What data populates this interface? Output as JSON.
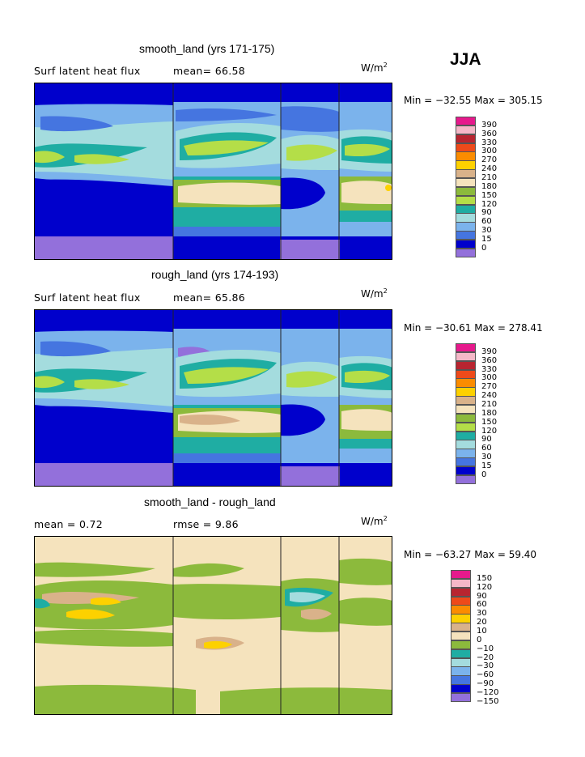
{
  "season": "JJA",
  "units": {
    "base": "W/m",
    "exp": "2"
  },
  "panels": [
    {
      "title": "smooth_land (yrs 171-175)",
      "left_label": "Surf latent heat flux",
      "stat1": "mean=   66.58",
      "stat2": "",
      "minmax": "Min = −32.55  Max =  305.15"
    },
    {
      "title": "rough_land (yrs 174-193)",
      "left_label": "Surf latent heat flux",
      "stat1": "mean=   65.86",
      "stat2": "",
      "minmax": "Min = −30.61  Max =  278.41"
    },
    {
      "title": "smooth_land - rough_land",
      "left_label": "mean =    0.72",
      "stat1": "rmse =    9.86",
      "stat2": "",
      "minmax": "Min = −63.27  Max =   59.40"
    }
  ],
  "colors": {
    "c390": "#e6198c",
    "c360": "#f5b8c8",
    "c330": "#b82530",
    "c300": "#ee4a1a",
    "c270": "#fb8c00",
    "c240": "#fdd100",
    "c210": "#d9b28a",
    "c180": "#f5e3bd",
    "c150": "#8cba3c",
    "c120": "#b4de48",
    "c90": "#1fada3",
    "c60": "#a4dcde",
    "c30": "#7bb3ec",
    "c15": "#4575e0",
    "c0": "#0000cc",
    "cneg": "#9370db"
  },
  "chart_data": [
    {
      "type": "heatmap",
      "title": "smooth_land (yrs 171-175)",
      "variable": "Surf latent heat flux",
      "mean": 66.58,
      "min": -32.55,
      "max": 305.15,
      "units": "W/m2",
      "colorbar_levels": [
        390,
        360,
        330,
        300,
        270,
        240,
        210,
        180,
        150,
        120,
        90,
        60,
        30,
        15,
        0
      ]
    },
    {
      "type": "heatmap",
      "title": "rough_land (yrs 174-193)",
      "variable": "Surf latent heat flux",
      "mean": 65.86,
      "min": -30.61,
      "max": 278.41,
      "units": "W/m2",
      "colorbar_levels": [
        390,
        360,
        330,
        300,
        270,
        240,
        210,
        180,
        150,
        120,
        90,
        60,
        30,
        15,
        0
      ]
    },
    {
      "type": "heatmap",
      "title": "smooth_land - rough_land",
      "mean": 0.72,
      "rmse": 9.86,
      "min": -63.27,
      "max": 59.4,
      "units": "W/m2",
      "colorbar_levels": [
        150,
        120,
        90,
        60,
        30,
        20,
        10,
        0,
        -10,
        -20,
        -30,
        -60,
        -90,
        -120,
        -150
      ]
    }
  ],
  "colorbars": [
    {
      "labels": [
        "390",
        "360",
        "330",
        "300",
        "270",
        "240",
        "210",
        "180",
        "150",
        "120",
        "90",
        "60",
        "30",
        "15",
        "0"
      ],
      "colors": [
        "#e6198c",
        "#f5b8c8",
        "#b82530",
        "#ee4a1a",
        "#fb8c00",
        "#fdd100",
        "#d9b28a",
        "#f5e3bd",
        "#8cba3c",
        "#b4de48",
        "#1fada3",
        "#a4dcde",
        "#7bb3ec",
        "#4575e0",
        "#0000cc",
        "#9370db"
      ]
    },
    {
      "labels": [
        "390",
        "360",
        "330",
        "300",
        "270",
        "240",
        "210",
        "180",
        "150",
        "120",
        "90",
        "60",
        "30",
        "15",
        "0"
      ],
      "colors": [
        "#e6198c",
        "#f5b8c8",
        "#b82530",
        "#ee4a1a",
        "#fb8c00",
        "#fdd100",
        "#d9b28a",
        "#f5e3bd",
        "#8cba3c",
        "#b4de48",
        "#1fada3",
        "#a4dcde",
        "#7bb3ec",
        "#4575e0",
        "#0000cc",
        "#9370db"
      ]
    },
    {
      "labels": [
        "150",
        "120",
        "90",
        "60",
        "30",
        "20",
        "10",
        "0",
        "−10",
        "−20",
        "−30",
        "−60",
        "−90",
        "−120",
        "−150"
      ],
      "colors": [
        "#e6198c",
        "#f5b8c8",
        "#b82530",
        "#ee4a1a",
        "#fb8c00",
        "#fdd100",
        "#d9b28a",
        "#f5e3bd",
        "#8cba3c",
        "#1fada3",
        "#a4dcde",
        "#7bb3ec",
        "#4575e0",
        "#0000cc",
        "#9370db"
      ]
    }
  ]
}
